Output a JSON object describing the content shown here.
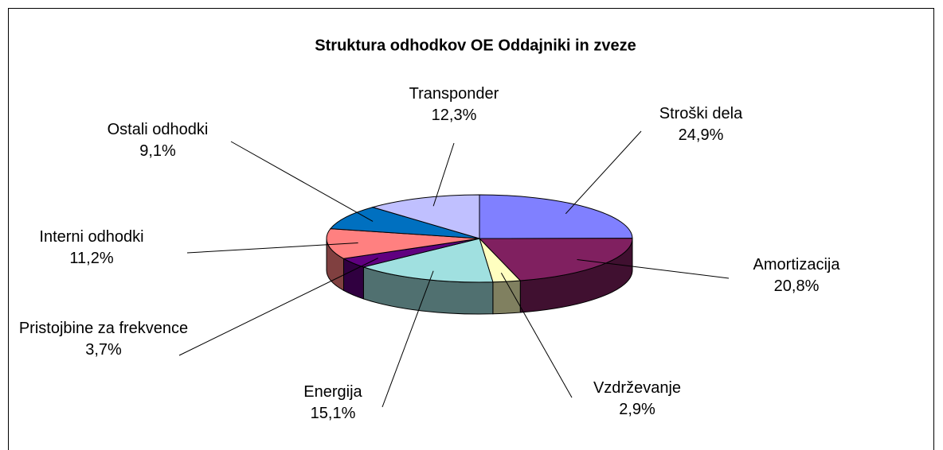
{
  "chart_data": {
    "type": "pie3d",
    "title": "Struktura odhodkov OE Oddajniki in zveze",
    "categories": [
      "Stroški dela",
      "Amortizacija",
      "Vzdrževanje",
      "Energija",
      "Pristojbine za frekvence",
      "Interni odhodki",
      "Ostali odhodki",
      "Transponder"
    ],
    "values": [
      24.9,
      20.8,
      2.9,
      15.1,
      3.7,
      11.2,
      9.1,
      12.3
    ],
    "value_labels": [
      "24,9%",
      "20,8%",
      "2,9%",
      "15,1%",
      "3,7%",
      "11,2%",
      "9,1%",
      "12,3%"
    ],
    "colors": [
      "#8080ff",
      "#802060",
      "#ffffc0",
      "#a0e0e0",
      "#600080",
      "#ff8080",
      "#0070c0",
      "#c0c0ff"
    ]
  }
}
